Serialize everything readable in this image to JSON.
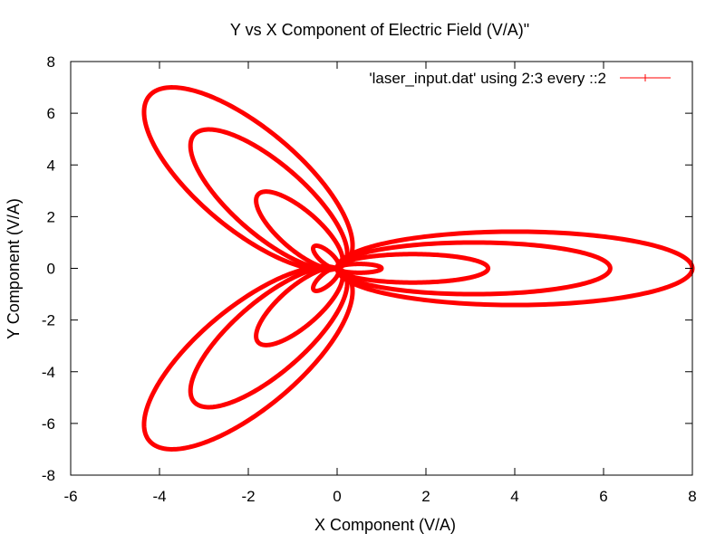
{
  "chart_data": {
    "type": "scatter",
    "title": "Y vs X Component of Electric Field (V/A)\"",
    "xlabel": "X Component (V/A)",
    "ylabel": "Y Component (V/A)",
    "xlim": [
      -6,
      8
    ],
    "ylim": [
      -8,
      8
    ],
    "x_ticks": [
      -6,
      -4,
      -2,
      0,
      2,
      4,
      6,
      8
    ],
    "y_ticks": [
      -8,
      -6,
      -4,
      -2,
      0,
      2,
      4,
      6,
      8
    ],
    "x_tick_labels": [
      "-6",
      "-4",
      "-2",
      "0",
      "2",
      "4",
      "6",
      "8"
    ],
    "y_tick_labels": [
      "-8",
      "-6",
      "-4",
      "-2",
      "0",
      "2",
      "4",
      "6",
      "8"
    ],
    "grid": false,
    "legend_position": "top-right",
    "series": [
      {
        "name": "'laser_input.dat' using 2:3 every ::2",
        "color": "#ff0000",
        "petal_angles_deg": [
          0,
          120,
          240
        ],
        "loop_amplitudes": [
          1.0,
          3.4,
          6.15,
          8.0
        ],
        "loop_half_widths": [
          0.17,
          0.55,
          1.0,
          1.42
        ]
      }
    ]
  }
}
